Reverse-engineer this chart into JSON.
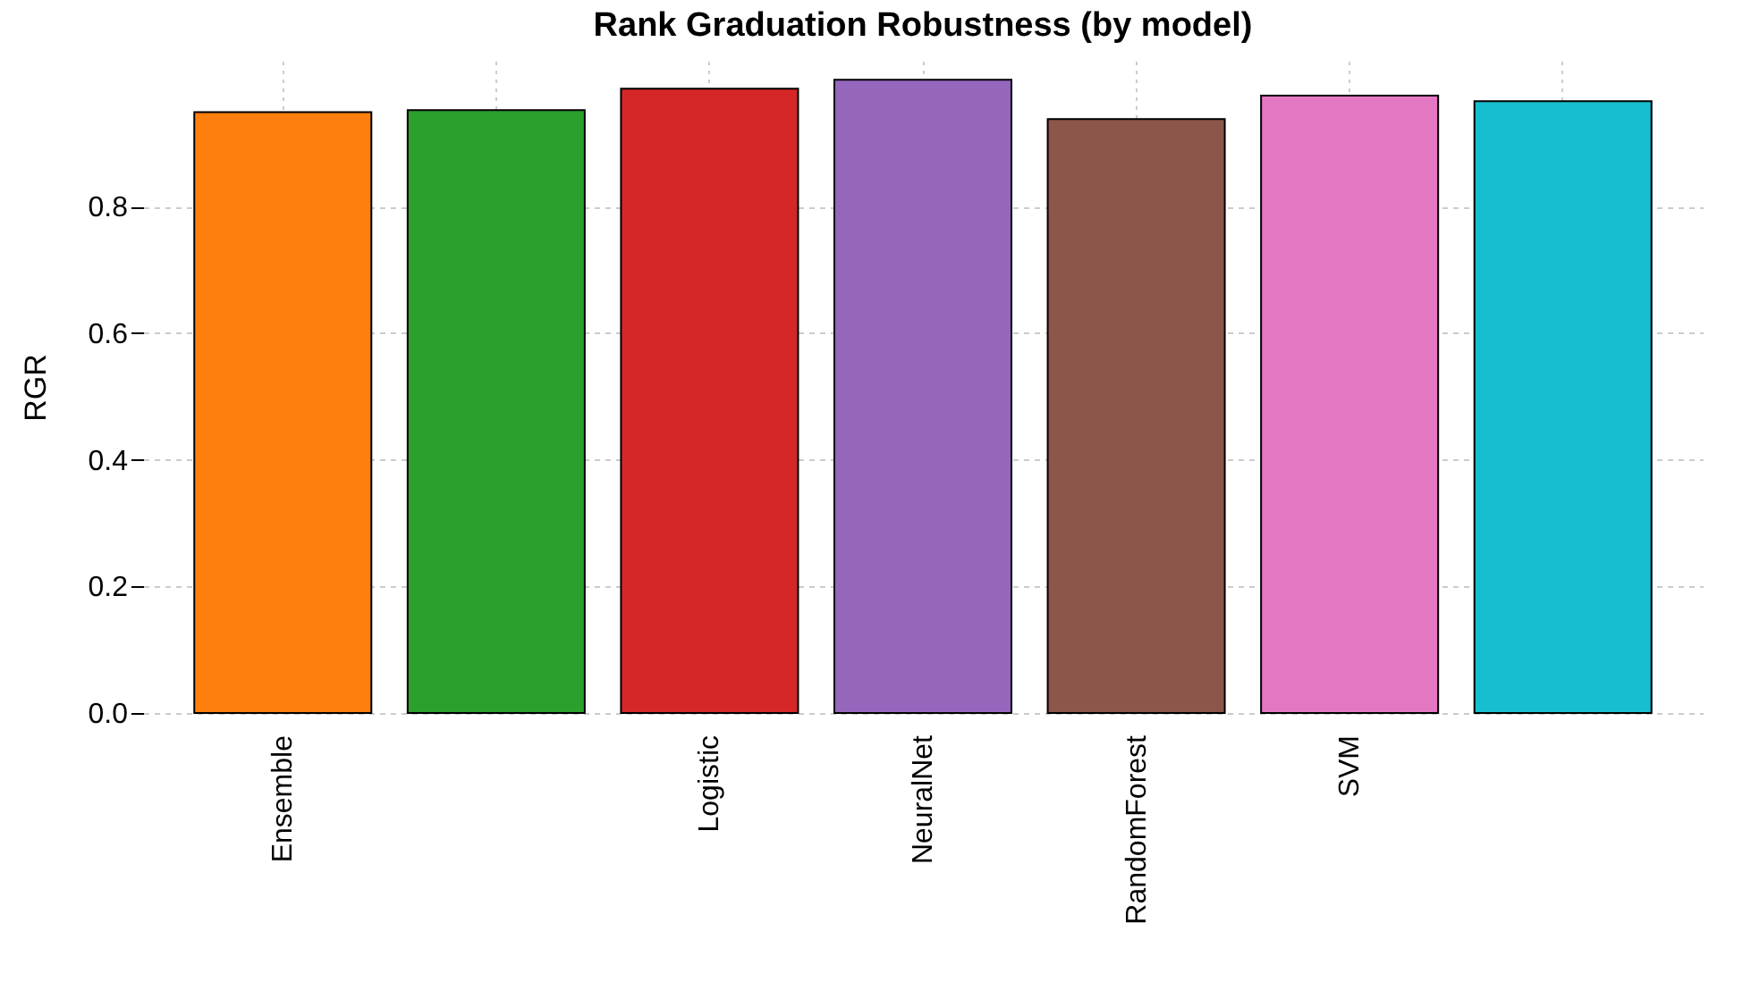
{
  "chart_data": {
    "type": "bar",
    "title": "Rank Graduation Robustness (by model)",
    "ylabel": "RGR",
    "categories": [
      "Ensemble",
      null,
      "Logistic",
      "NeuralNet",
      "RandomForest",
      "SVM",
      null
    ],
    "values": [
      0.949,
      0.952,
      0.986,
      1.0,
      0.938,
      0.975,
      0.966
    ],
    "colors": [
      "#ff7f0e",
      "#2ca02c",
      "#d62728",
      "#9467bd",
      "#8c564b",
      "#e377c2",
      "#17becf"
    ],
    "ylim": [
      0,
      1.03
    ],
    "yticks": [
      {
        "value": 0,
        "label": "0.0"
      },
      0.2,
      0.4,
      0.6,
      0.8
    ],
    "grid": true,
    "legend": false
  }
}
